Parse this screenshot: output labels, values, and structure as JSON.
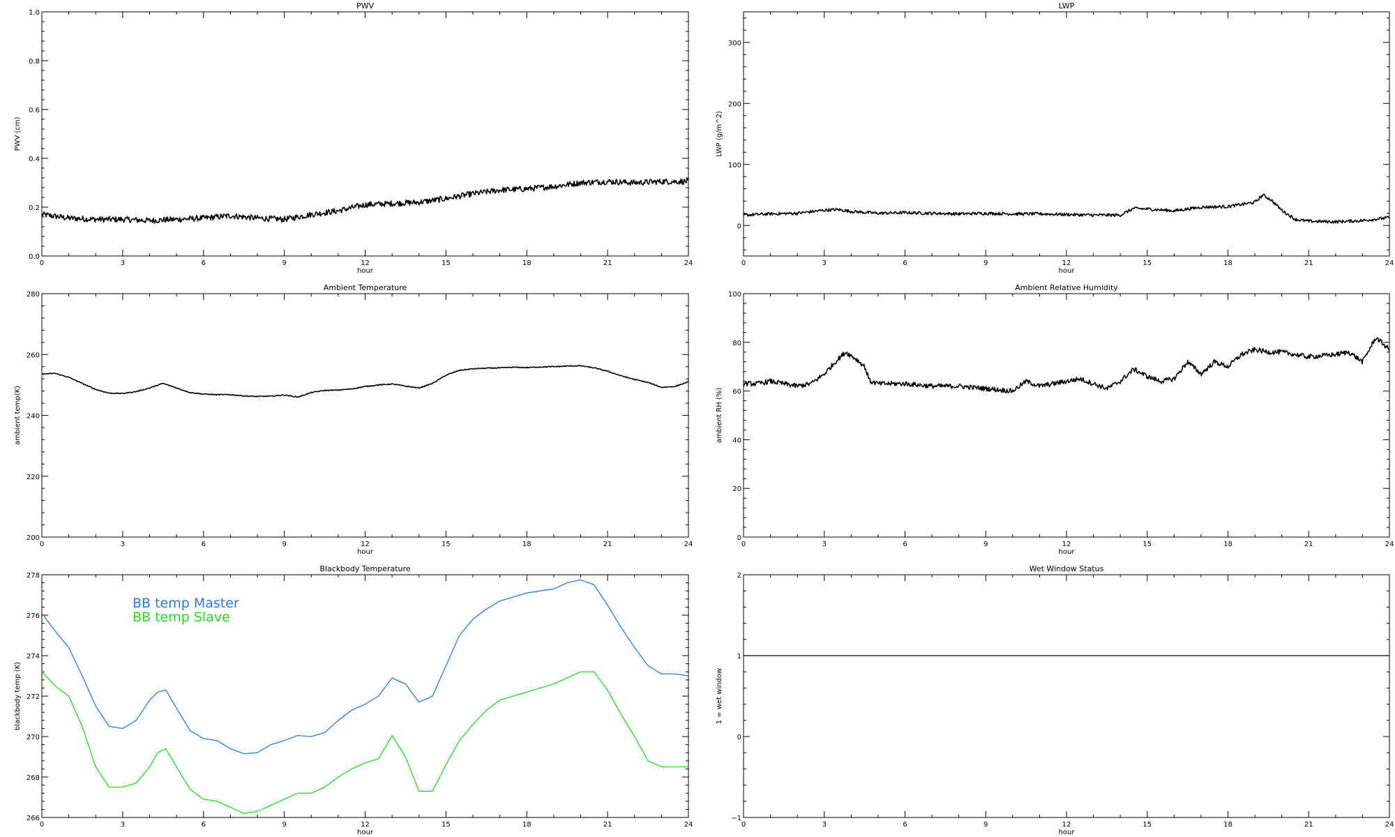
{
  "chart_data": [
    {
      "id": "pwv",
      "type": "line",
      "title": "PWV",
      "xlabel": "hour",
      "ylabel": "PWV (cm)",
      "xlim": [
        0,
        24
      ],
      "ylim": [
        0.0,
        1.0
      ],
      "xticks": [
        "0",
        "3",
        "6",
        "9",
        "12",
        "15",
        "18",
        "21",
        "24"
      ],
      "yticks": [
        "0.0",
        "0.2",
        "0.4",
        "0.6",
        "0.8",
        "1.0"
      ],
      "noise": 0.012,
      "series": [
        {
          "color": "#000000",
          "x": [
            0,
            1,
            2,
            3,
            4,
            5,
            6,
            7,
            8,
            9,
            10,
            11,
            12,
            13,
            14,
            15,
            16,
            17,
            18,
            19,
            20,
            21,
            22,
            23,
            24
          ],
          "y": [
            0.17,
            0.155,
            0.15,
            0.15,
            0.145,
            0.15,
            0.155,
            0.165,
            0.155,
            0.15,
            0.17,
            0.185,
            0.21,
            0.215,
            0.22,
            0.235,
            0.255,
            0.27,
            0.275,
            0.285,
            0.3,
            0.305,
            0.3,
            0.305,
            0.305
          ]
        }
      ]
    },
    {
      "id": "lwp",
      "type": "line",
      "title": "LWP",
      "xlabel": "hour",
      "ylabel": "LWP (g/m^2)",
      "xlim": [
        0,
        24
      ],
      "ylim": [
        -50,
        350
      ],
      "xticks": [
        "0",
        "3",
        "6",
        "9",
        "12",
        "15",
        "18",
        "21",
        "24"
      ],
      "yticks": [
        "0",
        "100",
        "200",
        "300"
      ],
      "noise": 2.5,
      "series": [
        {
          "color": "#000000",
          "x": [
            0,
            1,
            2,
            3,
            3.5,
            4,
            5,
            6,
            7,
            8,
            9,
            10,
            11,
            12,
            13,
            14,
            14.5,
            15,
            16,
            17,
            18,
            19,
            19.3,
            19.6,
            20,
            20.5,
            21,
            22,
            23,
            24
          ],
          "y": [
            17,
            19,
            20,
            25,
            26,
            23,
            20,
            21,
            20,
            19,
            20,
            19,
            19,
            18,
            17,
            17,
            28,
            27,
            24,
            30,
            31,
            38,
            50,
            42,
            25,
            10,
            7,
            6,
            8,
            13
          ]
        }
      ]
    },
    {
      "id": "ambtemp",
      "type": "line",
      "title": "Ambient Temperature",
      "xlabel": "hour",
      "ylabel": "ambient temp(K)",
      "xlim": [
        0,
        24
      ],
      "ylim": [
        200,
        280
      ],
      "xticks": [
        "0",
        "3",
        "6",
        "9",
        "12",
        "15",
        "18",
        "21",
        "24"
      ],
      "yticks": [
        "200",
        "220",
        "240",
        "260",
        "280"
      ],
      "noise": 0.15,
      "series": [
        {
          "color": "#000000",
          "x": [
            0,
            0.5,
            1,
            1.5,
            2,
            2.5,
            3,
            3.5,
            4,
            4.5,
            5,
            5.5,
            6,
            6.5,
            7,
            7.5,
            8,
            8.5,
            9,
            9.5,
            10,
            10.5,
            11,
            11.5,
            12,
            12.5,
            13,
            13.5,
            14,
            14.5,
            15,
            15.5,
            16,
            16.5,
            17,
            17.5,
            18,
            18.5,
            19,
            19.5,
            20,
            20.5,
            21,
            21.5,
            22,
            22.5,
            23,
            23.5,
            24
          ],
          "y": [
            253.6,
            253.8,
            252.5,
            250.5,
            248.5,
            247.3,
            247.2,
            247.8,
            249,
            250.5,
            249,
            247.5,
            247,
            246.8,
            246.8,
            246.4,
            246.2,
            246.3,
            246.7,
            246,
            247.5,
            248.2,
            248.3,
            248.7,
            249.5,
            250,
            250.3,
            249.6,
            249,
            250.5,
            253.2,
            254.8,
            255.3,
            255.5,
            255.6,
            255.8,
            255.7,
            255.9,
            256,
            256.2,
            256.3,
            255.6,
            254.5,
            253,
            251.8,
            250.8,
            249.2,
            249.5,
            251
          ]
        }
      ]
    },
    {
      "id": "ambrh",
      "type": "line",
      "title": "Ambient Relative Humidity",
      "xlabel": "hour",
      "ylabel": "ambient RH (%)",
      "xlim": [
        0,
        24
      ],
      "ylim": [
        0,
        100
      ],
      "xticks": [
        "0",
        "3",
        "6",
        "9",
        "12",
        "15",
        "18",
        "21",
        "24"
      ],
      "yticks": [
        "0",
        "20",
        "40",
        "60",
        "80",
        "100"
      ],
      "noise": 1.0,
      "series": [
        {
          "color": "#000000",
          "x": [
            0,
            0.5,
            1,
            1.5,
            2,
            2.5,
            3,
            3.5,
            3.8,
            4.2,
            4.5,
            4.7,
            5,
            6,
            7,
            8,
            9,
            10,
            10.5,
            11,
            12,
            12.5,
            13,
            13.5,
            14,
            14.5,
            15,
            15.5,
            16,
            16.5,
            17,
            17.5,
            18,
            18.5,
            19,
            19.5,
            20,
            21,
            22,
            22.5,
            23,
            23.5,
            24
          ],
          "y": [
            63,
            63,
            64,
            63,
            62,
            63,
            67,
            73,
            76,
            73,
            70,
            64,
            63,
            63,
            62,
            62,
            61,
            60,
            64,
            62,
            64,
            65,
            63,
            61,
            64,
            69,
            66,
            64,
            65,
            72,
            67,
            72,
            70,
            75,
            77,
            76,
            76,
            74,
            75,
            76,
            72,
            82,
            77
          ]
        }
      ]
    },
    {
      "id": "bbtemp",
      "type": "line",
      "title": "Blackbody Temperature",
      "xlabel": "hour",
      "ylabel": "blackbody temp (K)",
      "xlim": [
        0,
        24
      ],
      "ylim": [
        266,
        278
      ],
      "xticks": [
        "0",
        "3",
        "6",
        "9",
        "12",
        "15",
        "18",
        "21",
        "24"
      ],
      "yticks": [
        "266",
        "268",
        "270",
        "272",
        "274",
        "276",
        "278"
      ],
      "noise": 0,
      "series": [
        {
          "name": "BB temp Master",
          "color": "#2a7be6",
          "x": [
            0,
            0.5,
            1,
            1.5,
            2,
            2.5,
            3,
            3.5,
            4,
            4.3,
            4.6,
            5,
            5.5,
            6,
            6.5,
            7,
            7.5,
            8,
            8.5,
            9,
            9.5,
            10,
            10.5,
            11,
            11.5,
            12,
            12.5,
            13,
            13.5,
            14,
            14.5,
            15,
            15.5,
            16,
            16.5,
            17,
            17.5,
            18,
            18.5,
            19,
            19.5,
            20,
            20.5,
            21,
            21.5,
            22,
            22.5,
            23,
            23.5,
            24
          ],
          "y": [
            276.1,
            275.2,
            274.4,
            273,
            271.5,
            270.5,
            270.4,
            270.8,
            271.8,
            272.2,
            272.3,
            271.4,
            270.3,
            269.9,
            269.8,
            269.4,
            269.15,
            269.2,
            269.6,
            269.8,
            270.05,
            270,
            270.2,
            270.8,
            271.3,
            271.6,
            272.0,
            272.9,
            272.6,
            271.7,
            272,
            273.5,
            275,
            275.8,
            276.3,
            276.7,
            276.9,
            277.1,
            277.2,
            277.3,
            277.6,
            277.75,
            277.5,
            276.5,
            275.4,
            274.4,
            273.5,
            273.1,
            273.1,
            273
          ]
        },
        {
          "name": "BB temp Slave",
          "color": "#1fe01f",
          "x": [
            0,
            0.5,
            1,
            1.5,
            2,
            2.5,
            3,
            3.5,
            4,
            4.3,
            4.6,
            5,
            5.5,
            6,
            6.5,
            7,
            7.5,
            8,
            8.5,
            9,
            9.5,
            10,
            10.5,
            11,
            11.5,
            12,
            12.5,
            13,
            13.5,
            14,
            14.5,
            15,
            15.5,
            16,
            16.5,
            17,
            17.5,
            18,
            18.5,
            19,
            19.5,
            20,
            20.5,
            21,
            21.5,
            22,
            22.5,
            23,
            23.5,
            24
          ],
          "y": [
            273.2,
            272.5,
            272,
            270.5,
            268.5,
            267.5,
            267.5,
            267.7,
            268.5,
            269.2,
            269.4,
            268.5,
            267.4,
            266.9,
            266.8,
            266.5,
            266.2,
            266.3,
            266.6,
            266.9,
            267.2,
            267.2,
            267.5,
            268,
            268.4,
            268.7,
            268.9,
            270.05,
            269.0,
            267.3,
            267.3,
            268.6,
            269.8,
            270.6,
            271.3,
            271.8,
            272.0,
            272.2,
            272.4,
            272.6,
            272.9,
            273.2,
            273.2,
            272.3,
            271.1,
            270,
            268.8,
            268.5,
            268.5,
            268.5
          ]
        }
      ]
    },
    {
      "id": "wetwin",
      "type": "line",
      "title": "Wet Window Status",
      "xlabel": "hour",
      "ylabel": "1 = wet window",
      "xlim": [
        0,
        24
      ],
      "ylim": [
        -1,
        2
      ],
      "xticks": [
        "0",
        "3",
        "6",
        "9",
        "12",
        "15",
        "18",
        "21",
        "24"
      ],
      "yticks": [
        "−1",
        "0",
        "1",
        "2"
      ],
      "noise": 0,
      "series": [
        {
          "color": "#000000",
          "x": [
            0,
            24
          ],
          "y": [
            1,
            1
          ]
        }
      ]
    }
  ]
}
